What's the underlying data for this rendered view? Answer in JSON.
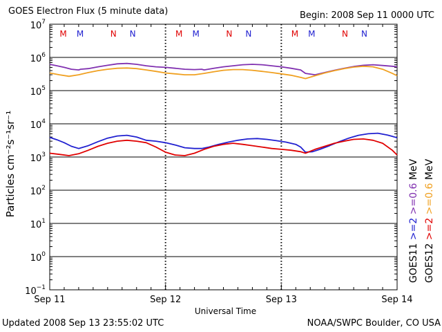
{
  "header": {
    "title": "GOES Electron Flux (5 minute data)",
    "begin": "Begin: 2008 Sep 11 0000 UTC"
  },
  "footer": {
    "updated": "Updated 2008 Sep 13 23:55:02 UTC",
    "source": "NOAA/SWPC Boulder, CO USA"
  },
  "chart_data": {
    "type": "line",
    "title": "GOES Electron Flux (5 minute data)",
    "xlabel": "Universal Time",
    "ylabel": "Particles cm⁻²s⁻¹sr⁻¹",
    "y_scale": "log",
    "ylim": [
      0.1,
      10000000
    ],
    "xlim": [
      0,
      72
    ],
    "x_unit": "hours since 2008 Sep 11 0000 UTC",
    "x_ticks": [
      {
        "x": 0,
        "label": "Sep 11"
      },
      {
        "x": 24,
        "label": "Sep 12"
      },
      {
        "x": 48,
        "label": "Sep 13"
      },
      {
        "x": 72,
        "label": "Sep 14"
      }
    ],
    "y_ticks": [
      {
        "value": 10000000,
        "base": "10",
        "exp": "7"
      },
      {
        "value": 1000000,
        "base": "10",
        "exp": "6"
      },
      {
        "value": 100000,
        "base": "10",
        "exp": "5"
      },
      {
        "value": 10000,
        "base": "10",
        "exp": "4"
      },
      {
        "value": 1000,
        "base": "10",
        "exp": "3"
      },
      {
        "value": 100,
        "base": "10",
        "exp": "2"
      },
      {
        "value": 10,
        "base": "10",
        "exp": "1"
      },
      {
        "value": 1,
        "base": "10",
        "exp": "0"
      },
      {
        "value": 0.1,
        "base": "10",
        "exp": "−1"
      }
    ],
    "threshold": {
      "value": 1000,
      "style": "dashed"
    },
    "markers": [
      {
        "x": 2.8,
        "label": "M",
        "color": "#e00000"
      },
      {
        "x": 6.3,
        "label": "M",
        "color": "#2020d0"
      },
      {
        "x": 13.2,
        "label": "N",
        "color": "#e00000"
      },
      {
        "x": 17.2,
        "label": "N",
        "color": "#2020d0"
      },
      {
        "x": 26.8,
        "label": "M",
        "color": "#e00000"
      },
      {
        "x": 30.3,
        "label": "M",
        "color": "#2020d0"
      },
      {
        "x": 37.2,
        "label": "N",
        "color": "#e00000"
      },
      {
        "x": 41.2,
        "label": "N",
        "color": "#2020d0"
      },
      {
        "x": 50.8,
        "label": "M",
        "color": "#e00000"
      },
      {
        "x": 54.3,
        "label": "M",
        "color": "#2020d0"
      },
      {
        "x": 61.2,
        "label": "N",
        "color": "#e00000"
      },
      {
        "x": 65.2,
        "label": "N",
        "color": "#2020d0"
      }
    ],
    "legend": [
      {
        "label": ">=2",
        "color": "#2020d0"
      },
      {
        "label": ">=0.6",
        "color": "#8030b0"
      },
      {
        "label": "MeV",
        "color": "#000000"
      },
      {
        "label": "GOES11",
        "color": "#000000"
      },
      {
        "label": ">=2",
        "color": "#e00000"
      },
      {
        "label": ">=0.6",
        "color": "#f0a020"
      },
      {
        "label": "MeV",
        "color": "#000000"
      },
      {
        "label": "GOES12",
        "color": "#000000"
      }
    ],
    "series": [
      {
        "name": "GOES11 >=0.6 MeV",
        "color": "#8030b0",
        "points": [
          [
            0,
            620000
          ],
          [
            1.5,
            560000
          ],
          [
            3,
            500000
          ],
          [
            4.5,
            440000
          ],
          [
            6,
            420000
          ],
          [
            6.4,
            440000
          ],
          [
            8,
            460000
          ],
          [
            10,
            520000
          ],
          [
            12,
            580000
          ],
          [
            14,
            640000
          ],
          [
            16,
            660000
          ],
          [
            18,
            620000
          ],
          [
            20,
            560000
          ],
          [
            22,
            520000
          ],
          [
            24,
            500000
          ],
          [
            26,
            470000
          ],
          [
            28,
            440000
          ],
          [
            30,
            430000
          ],
          [
            31.5,
            440000
          ],
          [
            32,
            420000
          ],
          [
            34,
            470000
          ],
          [
            36,
            520000
          ],
          [
            38,
            560000
          ],
          [
            40,
            600000
          ],
          [
            42,
            620000
          ],
          [
            44,
            600000
          ],
          [
            46,
            560000
          ],
          [
            48,
            520000
          ],
          [
            50,
            470000
          ],
          [
            52,
            420000
          ],
          [
            53,
            330000
          ],
          [
            55,
            300000
          ],
          [
            57,
            350000
          ],
          [
            59,
            410000
          ],
          [
            61,
            470000
          ],
          [
            63,
            530000
          ],
          [
            65,
            580000
          ],
          [
            67,
            600000
          ],
          [
            69,
            570000
          ],
          [
            71,
            540000
          ],
          [
            72,
            520000
          ]
        ]
      },
      {
        "name": "GOES12 >=0.6 MeV",
        "color": "#f0a020",
        "points": [
          [
            0,
            340000
          ],
          [
            2,
            300000
          ],
          [
            4,
            270000
          ],
          [
            6,
            300000
          ],
          [
            8,
            350000
          ],
          [
            10,
            400000
          ],
          [
            12,
            440000
          ],
          [
            14,
            470000
          ],
          [
            16,
            480000
          ],
          [
            18,
            460000
          ],
          [
            20,
            420000
          ],
          [
            22,
            380000
          ],
          [
            24,
            340000
          ],
          [
            26,
            320000
          ],
          [
            28,
            300000
          ],
          [
            30,
            300000
          ],
          [
            32,
            330000
          ],
          [
            34,
            370000
          ],
          [
            36,
            410000
          ],
          [
            38,
            430000
          ],
          [
            40,
            430000
          ],
          [
            42,
            410000
          ],
          [
            44,
            380000
          ],
          [
            46,
            350000
          ],
          [
            48,
            320000
          ],
          [
            50,
            290000
          ],
          [
            52,
            250000
          ],
          [
            53,
            230000
          ],
          [
            55,
            280000
          ],
          [
            57,
            340000
          ],
          [
            59,
            400000
          ],
          [
            61,
            460000
          ],
          [
            63,
            510000
          ],
          [
            65,
            540000
          ],
          [
            67,
            520000
          ],
          [
            69,
            440000
          ],
          [
            71,
            330000
          ],
          [
            72,
            280000
          ]
        ]
      },
      {
        "name": "GOES11 >=2 MeV",
        "color": "#2020d0",
        "points": [
          [
            0,
            3900
          ],
          [
            1.5,
            3300
          ],
          [
            3,
            2700
          ],
          [
            4.5,
            2100
          ],
          [
            6,
            1800
          ],
          [
            8,
            2200
          ],
          [
            10,
            2900
          ],
          [
            12,
            3700
          ],
          [
            14,
            4300
          ],
          [
            16,
            4500
          ],
          [
            18,
            4000
          ],
          [
            20,
            3200
          ],
          [
            22,
            3000
          ],
          [
            24,
            2700
          ],
          [
            26,
            2300
          ],
          [
            28,
            1900
          ],
          [
            30,
            1800
          ],
          [
            31.5,
            1800
          ],
          [
            33,
            2000
          ],
          [
            35,
            2400
          ],
          [
            37,
            2800
          ],
          [
            39,
            3200
          ],
          [
            41,
            3500
          ],
          [
            43,
            3600
          ],
          [
            45,
            3400
          ],
          [
            47,
            3100
          ],
          [
            49,
            2800
          ],
          [
            51,
            2400
          ],
          [
            52,
            2000
          ],
          [
            53,
            1400
          ],
          [
            54.5,
            1450
          ],
          [
            56,
            1700
          ],
          [
            58,
            2200
          ],
          [
            60,
            2900
          ],
          [
            62,
            3700
          ],
          [
            64,
            4500
          ],
          [
            66,
            5000
          ],
          [
            68,
            5200
          ],
          [
            70,
            4600
          ],
          [
            71,
            4200
          ],
          [
            72,
            3800
          ]
        ]
      },
      {
        "name": "GOES12 >=2 MeV",
        "color": "#e00000",
        "points": [
          [
            0,
            1300
          ],
          [
            2,
            1200
          ],
          [
            4,
            1100
          ],
          [
            6,
            1250
          ],
          [
            8,
            1600
          ],
          [
            10,
            2100
          ],
          [
            12,
            2600
          ],
          [
            14,
            3000
          ],
          [
            16,
            3200
          ],
          [
            18,
            3000
          ],
          [
            20,
            2700
          ],
          [
            22,
            2000
          ],
          [
            24,
            1400
          ],
          [
            26,
            1150
          ],
          [
            28,
            1100
          ],
          [
            30,
            1300
          ],
          [
            32,
            1700
          ],
          [
            34,
            2100
          ],
          [
            36,
            2400
          ],
          [
            38,
            2600
          ],
          [
            40,
            2400
          ],
          [
            42,
            2200
          ],
          [
            44,
            2000
          ],
          [
            46,
            1800
          ],
          [
            48,
            1700
          ],
          [
            50,
            1600
          ],
          [
            52,
            1450
          ],
          [
            53,
            1300
          ],
          [
            55,
            1700
          ],
          [
            57,
            2100
          ],
          [
            59,
            2600
          ],
          [
            61,
            3000
          ],
          [
            63,
            3400
          ],
          [
            65,
            3500
          ],
          [
            67,
            3200
          ],
          [
            69,
            2600
          ],
          [
            71,
            1600
          ],
          [
            72,
            1150
          ]
        ]
      }
    ]
  }
}
